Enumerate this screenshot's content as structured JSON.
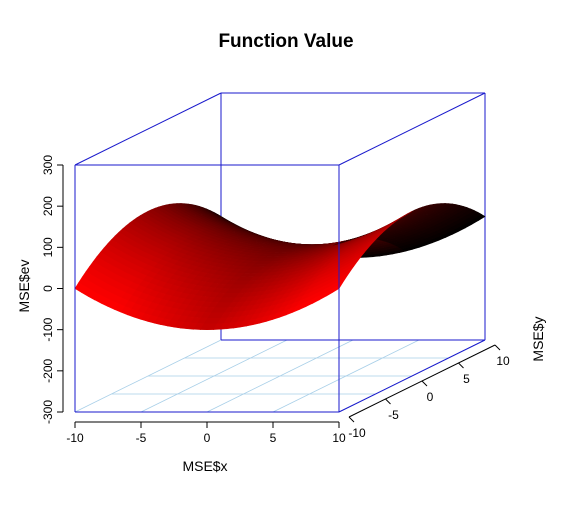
{
  "chart_data": {
    "type": "surface",
    "title": "Function Value",
    "xlabel": "MSE$x",
    "ylabel": "MSE$y",
    "zlabel": "MSE$ev",
    "function": "z = x^2 - y^2 (saddle)",
    "x_range": [
      -10,
      10
    ],
    "y_range": [
      -10,
      10
    ],
    "z_range": [
      -300,
      300
    ],
    "x_ticks": [
      "-10",
      "-5",
      "0",
      "5",
      "10"
    ],
    "y_ticks": [
      "-10",
      "-5",
      "0",
      "5",
      "10"
    ],
    "z_ticks": [
      "-300",
      "-200",
      "-100",
      "0",
      "100",
      "200",
      "300"
    ],
    "grid": "xy floor",
    "colors": {
      "box": "#1a1acc",
      "grid": "#a8cfe8",
      "surface_high": "#ff0000",
      "surface_low": "#000000"
    }
  }
}
